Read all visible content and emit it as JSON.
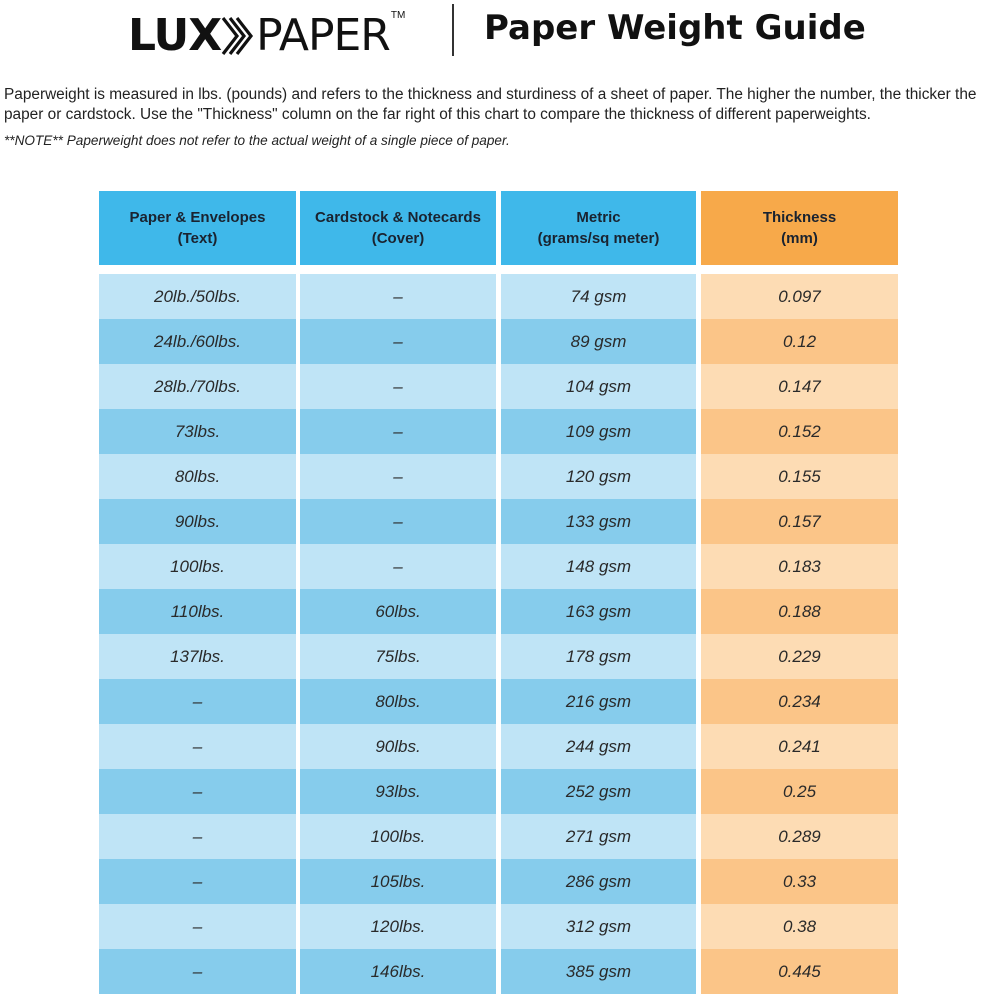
{
  "header": {
    "logo_bold": "LUX",
    "logo_light": "PAPER",
    "logo_tm": "TM",
    "title": "Paper Weight Guide"
  },
  "intro": "Paperweight is measured in lbs. (pounds) and refers to the thickness and sturdiness of a sheet of paper. The higher the number, the thicker the paper or cardstock. Use the \"Thickness\" column on the far right of this chart to compare the thickness of different paperweights.",
  "note": "**NOTE** Paperweight does not refer to the actual weight of a single piece of paper.",
  "colors": {
    "header_blue": "#3fb8ea",
    "header_orange": "#f7a94a",
    "row_blue_light": "#bfe4f6",
    "row_blue_dark": "#86ccec",
    "row_orange_light": "#fddcb4",
    "row_orange_dark": "#fbc588"
  },
  "table": {
    "headers": [
      "Paper & Envelopes\n(Text)",
      "Cardstock & Notecards\n(Cover)",
      "Metric\n(grams/sq meter)",
      "Thickness\n(mm)"
    ],
    "rows": [
      [
        "20lb./50lbs.",
        "–",
        "74 gsm",
        "0.097"
      ],
      [
        "24lb./60lbs.",
        "–",
        "89 gsm",
        "0.12"
      ],
      [
        "28lb./70lbs.",
        "–",
        "104 gsm",
        "0.147"
      ],
      [
        "73lbs.",
        "–",
        "109 gsm",
        "0.152"
      ],
      [
        "80lbs.",
        "–",
        "120 gsm",
        "0.155"
      ],
      [
        "90lbs.",
        "–",
        "133 gsm",
        "0.157"
      ],
      [
        "100lbs.",
        "–",
        "148 gsm",
        "0.183"
      ],
      [
        "110lbs.",
        "60lbs.",
        "163 gsm",
        "0.188"
      ],
      [
        "137lbs.",
        "75lbs.",
        "178 gsm",
        "0.229"
      ],
      [
        "–",
        "80lbs.",
        "216 gsm",
        "0.234"
      ],
      [
        "–",
        "90lbs.",
        "244 gsm",
        "0.241"
      ],
      [
        "–",
        "93lbs.",
        "252 gsm",
        "0.25"
      ],
      [
        "–",
        "100lbs.",
        "271 gsm",
        "0.289"
      ],
      [
        "–",
        "105lbs.",
        "286 gsm",
        "0.33"
      ],
      [
        "–",
        "120lbs.",
        "312 gsm",
        "0.38"
      ],
      [
        "–",
        "146lbs.",
        "385 gsm",
        "0.445"
      ]
    ]
  }
}
